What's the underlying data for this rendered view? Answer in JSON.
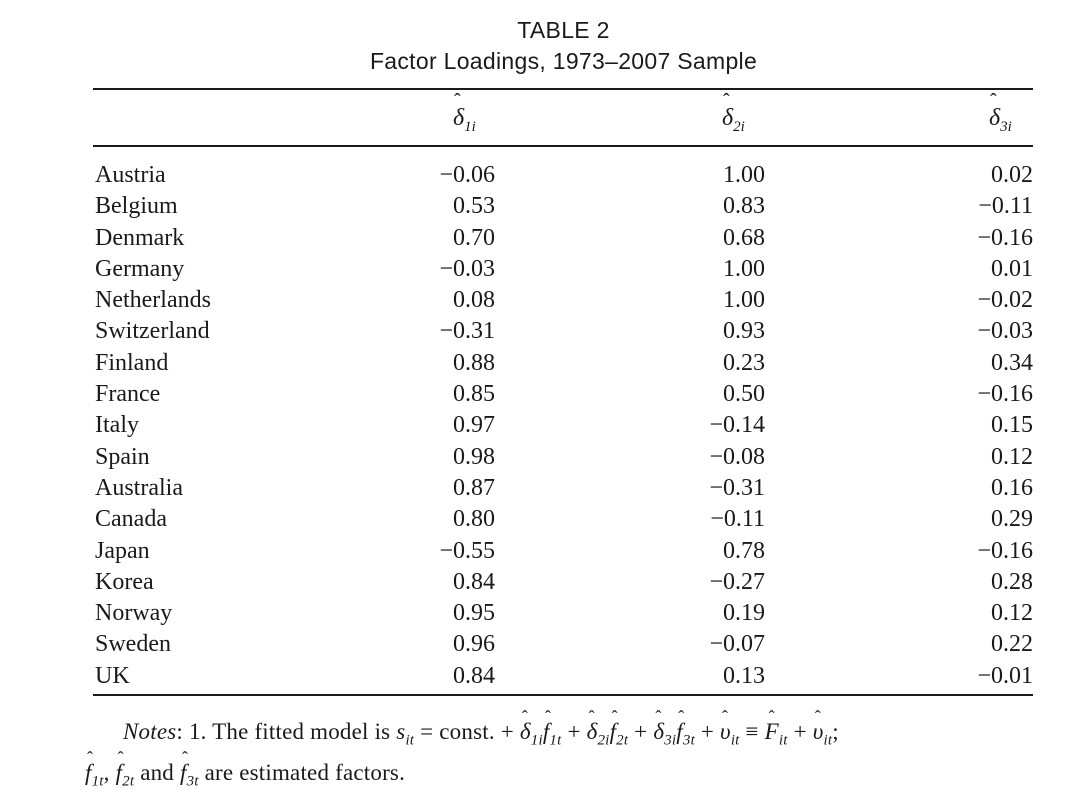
{
  "title": {
    "line1": "TABLE 2",
    "line2": "Factor Loadings, 1973–2007 Sample"
  },
  "columns": [
    {
      "symbol": "δ",
      "subscript": "1i"
    },
    {
      "symbol": "δ",
      "subscript": "2i"
    },
    {
      "symbol": "δ",
      "subscript": "3i"
    }
  ],
  "rows": [
    {
      "country": "Austria",
      "d1": "−0.06",
      "d2": "1.00",
      "d3": "0.02"
    },
    {
      "country": "Belgium",
      "d1": "0.53",
      "d2": "0.83",
      "d3": "−0.11"
    },
    {
      "country": "Denmark",
      "d1": "0.70",
      "d2": "0.68",
      "d3": "−0.16"
    },
    {
      "country": "Germany",
      "d1": "−0.03",
      "d2": "1.00",
      "d3": "0.01"
    },
    {
      "country": "Netherlands",
      "d1": "0.08",
      "d2": "1.00",
      "d3": "−0.02"
    },
    {
      "country": "Switzerland",
      "d1": "−0.31",
      "d2": "0.93",
      "d3": "−0.03"
    },
    {
      "country": "Finland",
      "d1": "0.88",
      "d2": "0.23",
      "d3": "0.34"
    },
    {
      "country": "France",
      "d1": "0.85",
      "d2": "0.50",
      "d3": "−0.16"
    },
    {
      "country": "Italy",
      "d1": "0.97",
      "d2": "−0.14",
      "d3": "0.15"
    },
    {
      "country": "Spain",
      "d1": "0.98",
      "d2": "−0.08",
      "d3": "0.12"
    },
    {
      "country": "Australia",
      "d1": "0.87",
      "d2": "−0.31",
      "d3": "0.16"
    },
    {
      "country": "Canada",
      "d1": "0.80",
      "d2": "−0.11",
      "d3": "0.29"
    },
    {
      "country": "Japan",
      "d1": "−0.55",
      "d2": "0.78",
      "d3": "−0.16"
    },
    {
      "country": "Korea",
      "d1": "0.84",
      "d2": "−0.27",
      "d3": "0.28"
    },
    {
      "country": "Norway",
      "d1": "0.95",
      "d2": "0.19",
      "d3": "0.12"
    },
    {
      "country": "Sweden",
      "d1": "0.96",
      "d2": "−0.07",
      "d3": "0.22"
    },
    {
      "country": "UK",
      "d1": "0.84",
      "d2": "0.13",
      "d3": "−0.01"
    }
  ],
  "notes": {
    "label": "Notes",
    "number": "1.",
    "text_before": "The fitted model is",
    "equation_lhs": "s",
    "equation_lhs_sub": "it",
    "const": "const.",
    "factor_terms": [
      {
        "loading_sub": "1i",
        "factor_sub": "1t"
      },
      {
        "loading_sub": "2i",
        "factor_sub": "2t"
      },
      {
        "loading_sub": "3i",
        "factor_sub": "3t"
      }
    ],
    "residual_sub": "it",
    "fitted": "F",
    "fitted_sub": "it",
    "factors_list": [
      {
        "sub": "1t"
      },
      {
        "sub": "2t"
      },
      {
        "sub": "3t"
      }
    ],
    "text_after": "are estimated factors."
  }
}
